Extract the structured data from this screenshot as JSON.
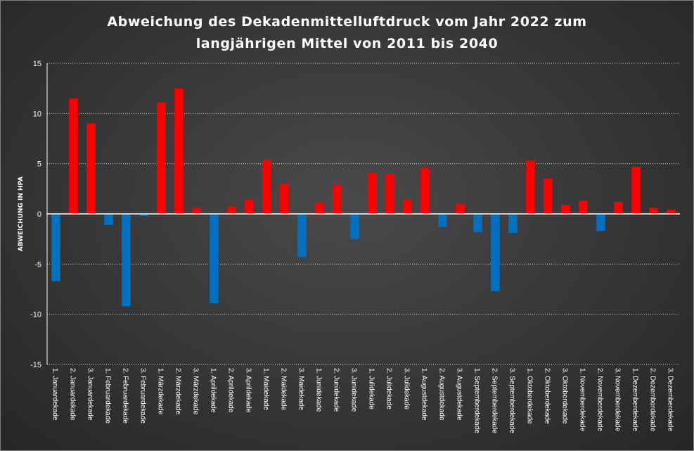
{
  "chart_data": {
    "type": "bar",
    "title": "Abweichung des Dekadenmittelluftdruck vom Jahr 2022 zum",
    "subtitle": "langjährigen Mittel von 2011 bis 2040",
    "xlabel": "",
    "ylabel": "ABWEICHUNG IN HPA",
    "ylim": [
      -15,
      15
    ],
    "yticks": [
      15,
      10,
      5,
      0,
      -5,
      -10,
      -15
    ],
    "grid": true,
    "legend": "none",
    "colors": {
      "positive": "#ff0000",
      "negative": "#0070c0",
      "grid": "#d9d9d9",
      "zero_line": "#ffffff"
    },
    "categories": [
      "1. Januardekade",
      "2. Januardekade",
      "3. Januardekade",
      "1. Februardekade",
      "2. Februardekade",
      "3. Februardekade",
      "1. Märzdekade",
      "2. Märzdekade",
      "3. Märzdekade",
      "1. Aprildekade",
      "2. Aprildekade",
      "3. Aprildekade",
      "1. Maidekade",
      "2. Maidekade",
      "3. Maidekade",
      "1. Junidekade",
      "2. Junidekade",
      "3. Junidekade",
      "1. Julidekade",
      "2. Julidekade",
      "3. Julidekade",
      "1. Augustdekade",
      "2. Augustdekade",
      "3. Augustdekade",
      "1. Septemberdekade",
      "2. Septemberdekade",
      "3. Septemberdekade",
      "1. Oktoberdekade",
      "2. Oktoberdekade",
      "3. Oktoberdekade",
      "1. Novemberdekade",
      "2. Novemberdekade",
      "3. Novemberdekade",
      "1. Dezemberdekade",
      "2. Dezemberdekade",
      "3. Dezemberdekade"
    ],
    "values": [
      -6.7,
      11.5,
      9.0,
      -1.1,
      -9.2,
      -0.2,
      11.1,
      12.5,
      0.6,
      -8.9,
      0.7,
      1.4,
      5.4,
      3.0,
      -4.3,
      1.1,
      2.9,
      -2.5,
      4.1,
      4.0,
      1.4,
      4.6,
      -1.3,
      1.0,
      -1.8,
      -7.7,
      -1.9,
      5.3,
      3.5,
      0.9,
      1.3,
      -1.7,
      1.2,
      4.7,
      0.6,
      0.4
    ]
  }
}
